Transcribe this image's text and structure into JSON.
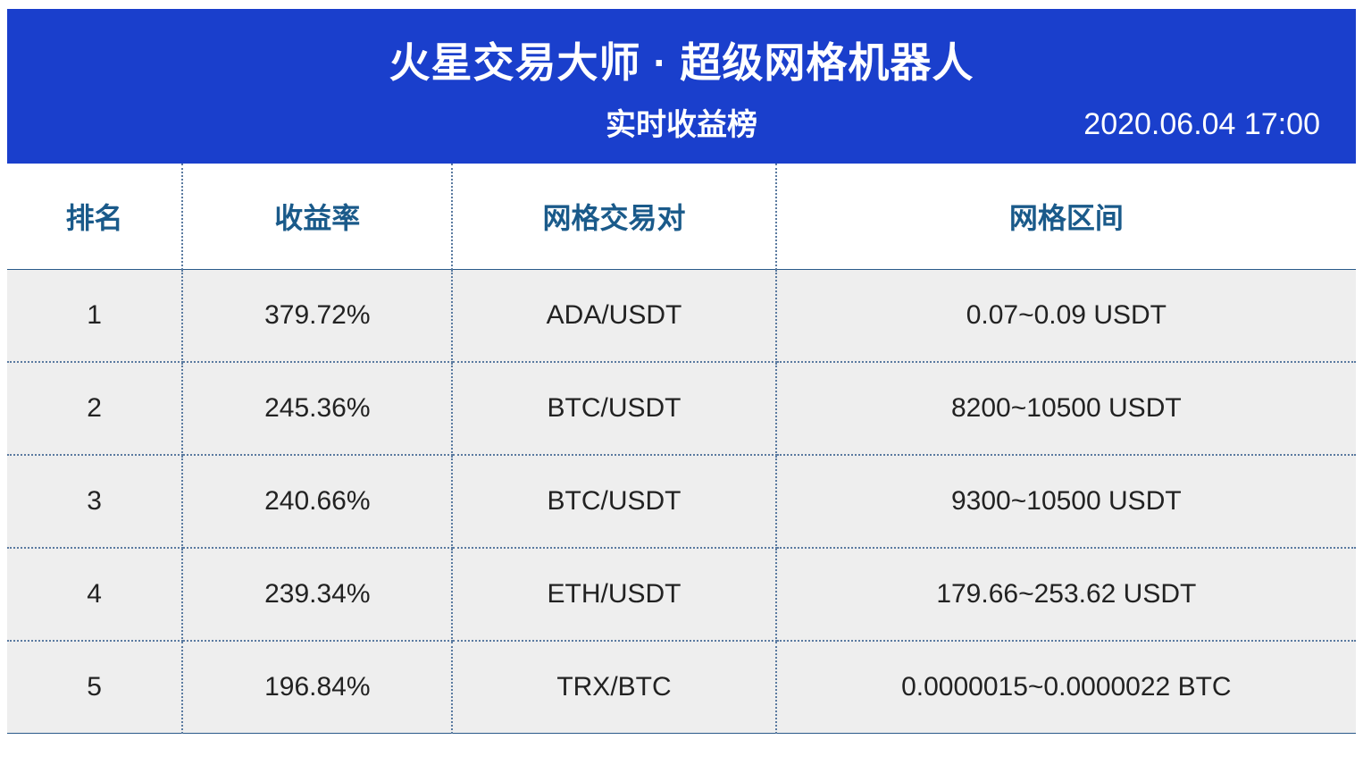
{
  "header": {
    "title": "火星交易大师 · 超级网格机器人",
    "subtitle": "实时收益榜",
    "timestamp": "2020.06.04 17:00",
    "bg_color": "#1a3fcc",
    "text_color": "#ffffff",
    "title_fontsize": 46,
    "subtitle_fontsize": 34,
    "timestamp_fontsize": 34
  },
  "table": {
    "type": "table",
    "header_bg": "#ffffff",
    "header_text_color": "#1a5a8a",
    "header_fontsize": 32,
    "body_bg": "#eeeeee",
    "body_text_color": "#222222",
    "body_fontsize": 30,
    "border_color": "#2a5a8a",
    "dotted_border_color": "#5a7aa0",
    "columns": [
      {
        "key": "rank",
        "label": "排名",
        "width_pct": 13,
        "align": "center"
      },
      {
        "key": "rate",
        "label": "收益率",
        "width_pct": 20,
        "align": "center"
      },
      {
        "key": "pair",
        "label": "网格交易对",
        "width_pct": 24,
        "align": "center"
      },
      {
        "key": "range",
        "label": "网格区间",
        "width_pct": 43,
        "align": "center"
      }
    ],
    "rows": [
      {
        "rank": "1",
        "rate": "379.72%",
        "pair": "ADA/USDT",
        "range": "0.07~0.09 USDT"
      },
      {
        "rank": "2",
        "rate": "245.36%",
        "pair": "BTC/USDT",
        "range": "8200~10500 USDT"
      },
      {
        "rank": "3",
        "rate": "240.66%",
        "pair": "BTC/USDT",
        "range": "9300~10500 USDT"
      },
      {
        "rank": "4",
        "rate": "239.34%",
        "pair": "ETH/USDT",
        "range": "179.66~253.62 USDT"
      },
      {
        "rank": "5",
        "rate": "196.84%",
        "pair": "TRX/BTC",
        "range": "0.0000015~0.0000022 BTC"
      }
    ]
  }
}
